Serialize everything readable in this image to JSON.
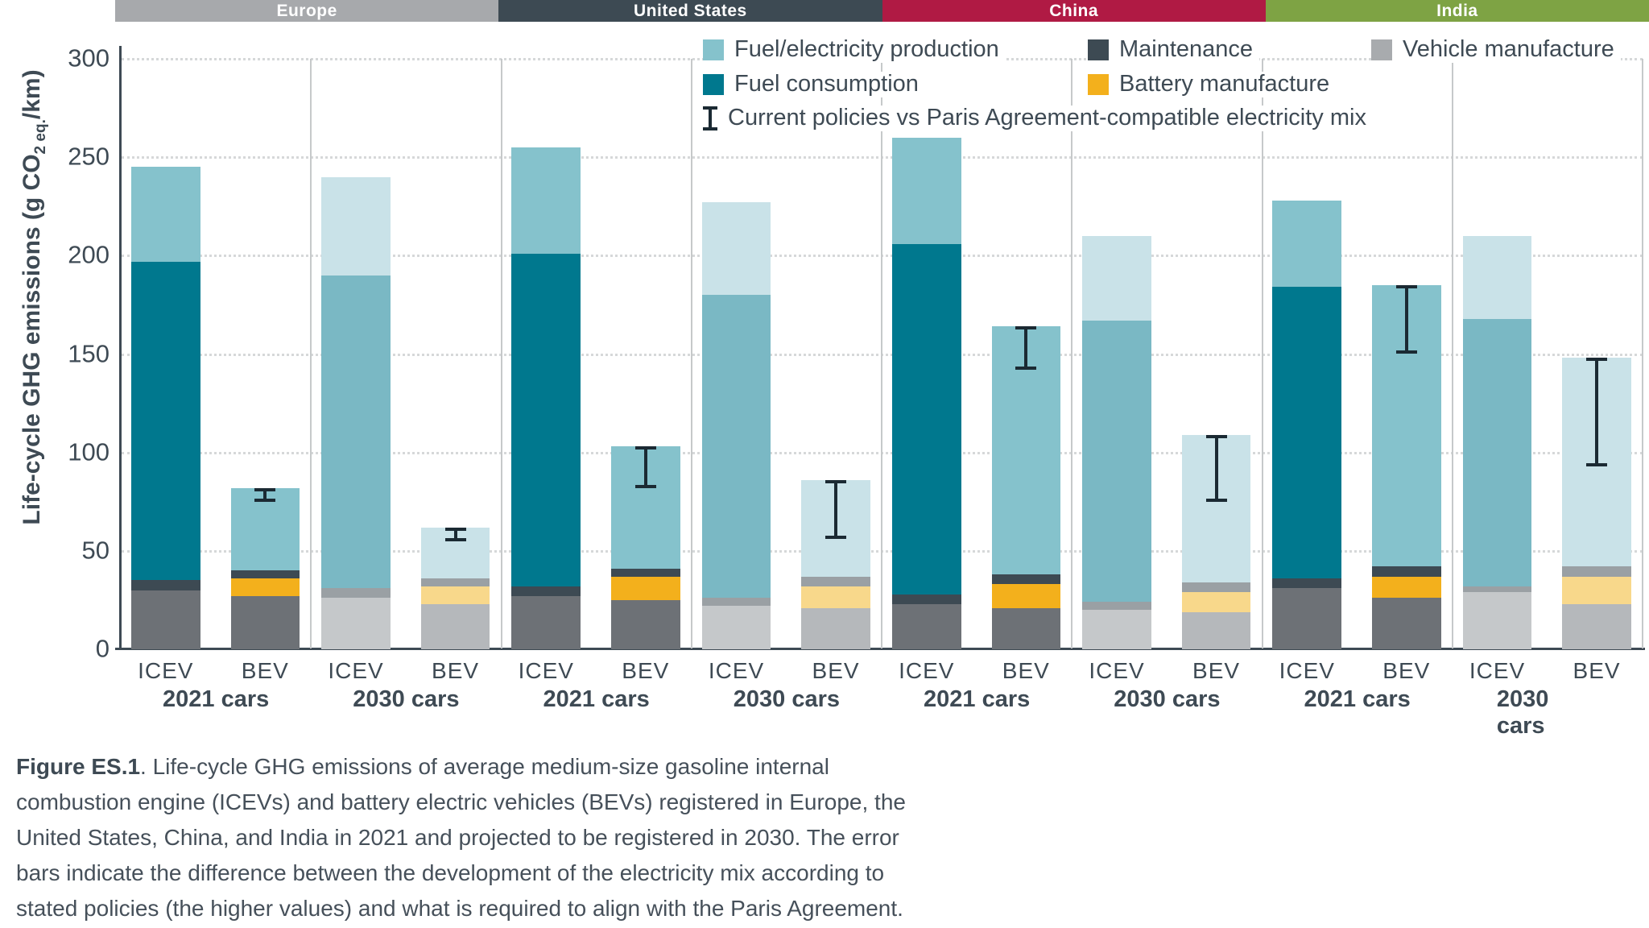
{
  "header": {
    "regions": [
      {
        "label": "Europe",
        "color": "#a7a9ac"
      },
      {
        "label": "United States",
        "color": "#3d4a53"
      },
      {
        "label": "China",
        "color": "#b01a44"
      },
      {
        "label": "India",
        "color": "#7ea344"
      }
    ]
  },
  "y_axis": {
    "title_prefix": "Life-cycle GHG emissions (g CO",
    "title_sub": "2 eq.",
    "title_suffix": "/km)",
    "ticks": [
      300,
      250,
      200,
      150,
      100,
      50,
      0
    ]
  },
  "legend": {
    "rows": [
      [
        {
          "kind": "swatch",
          "label": "Fuel/electricity production",
          "color": "#85c2cc"
        },
        {
          "kind": "swatch",
          "label": "Maintenance",
          "color": "#3d4a53"
        },
        {
          "kind": "swatch",
          "label": "Vehicle manufacture",
          "color": "#a8abae"
        }
      ],
      [
        {
          "kind": "swatch",
          "label": "Fuel consumption",
          "color": "#00788e"
        },
        {
          "kind": "swatch",
          "label": "Battery manufacture",
          "color": "#f3b01c"
        }
      ],
      [
        {
          "kind": "error-glyph",
          "label": "Current policies vs Paris Agreement-compatible electricity mix"
        }
      ]
    ]
  },
  "chart_data": {
    "type": "bar",
    "stacked": true,
    "ylim": [
      0,
      300
    ],
    "ylabel": "Life-cycle GHG emissions (g CO2 eq./km)",
    "grid": "dotted-horizontal",
    "error_bar_note": "Current policies vs Paris Agreement-compatible electricity mix",
    "palettes": {
      "y2021": {
        "vehicle_manufacture": "#6d7176",
        "battery_manufacture": "#f3b01c",
        "maintenance": "#3d4a53",
        "fuel_consumption": "#00788e",
        "fuel_electricity_production": "#85c2cc"
      },
      "y2030_icev": {
        "vehicle_manufacture": "#c5c8ca",
        "maintenance": "#9aa0a4",
        "fuel_consumption": "#7ab8c4",
        "fuel_electricity_production": "#c9e2e8"
      },
      "y2030_bev": {
        "vehicle_manufacture": "#b5b8bb",
        "battery_manufacture": "#f8d88b",
        "maintenance": "#9aa0a4",
        "fuel_electricity_production": "#c9e2e8"
      }
    },
    "groups": [
      {
        "region": "Europe",
        "label": "2021 cars",
        "bars": [
          {
            "label": "ICEV",
            "palette": "y2021",
            "total": 245,
            "segments": [
              [
                "vehicle_manufacture",
                30
              ],
              [
                "maintenance",
                5
              ],
              [
                "fuel_consumption",
                162
              ],
              [
                "fuel_electricity_production",
                48
              ]
            ]
          },
          {
            "label": "BEV",
            "palette": "y2021",
            "total": 82,
            "error": {
              "low": 75,
              "high": 82
            },
            "segments": [
              [
                "vehicle_manufacture",
                27
              ],
              [
                "battery_manufacture",
                9
              ],
              [
                "maintenance",
                4
              ],
              [
                "fuel_electricity_production",
                42
              ]
            ]
          }
        ]
      },
      {
        "region": "Europe",
        "label": "2030 cars",
        "bars": [
          {
            "label": "ICEV",
            "palette": "y2030_icev",
            "total": 240,
            "segments": [
              [
                "vehicle_manufacture",
                26
              ],
              [
                "maintenance",
                5
              ],
              [
                "fuel_consumption",
                159
              ],
              [
                "fuel_electricity_production",
                50
              ]
            ]
          },
          {
            "label": "BEV",
            "palette": "y2030_bev",
            "total": 62,
            "error": {
              "low": 55,
              "high": 62
            },
            "segments": [
              [
                "vehicle_manufacture",
                23
              ],
              [
                "battery_manufacture",
                9
              ],
              [
                "maintenance",
                4
              ],
              [
                "fuel_electricity_production",
                26
              ]
            ]
          }
        ]
      },
      {
        "region": "United States",
        "label": "2021 cars",
        "bars": [
          {
            "label": "ICEV",
            "palette": "y2021",
            "total": 255,
            "segments": [
              [
                "vehicle_manufacture",
                27
              ],
              [
                "maintenance",
                5
              ],
              [
                "fuel_consumption",
                169
              ],
              [
                "fuel_electricity_production",
                54
              ]
            ]
          },
          {
            "label": "BEV",
            "palette": "y2021",
            "total": 103,
            "error": {
              "low": 82,
              "high": 103
            },
            "segments": [
              [
                "vehicle_manufacture",
                25
              ],
              [
                "battery_manufacture",
                12
              ],
              [
                "maintenance",
                4
              ],
              [
                "fuel_electricity_production",
                62
              ]
            ]
          }
        ]
      },
      {
        "region": "United States",
        "label": "2030 cars",
        "bars": [
          {
            "label": "ICEV",
            "palette": "y2030_icev",
            "total": 227,
            "segments": [
              [
                "vehicle_manufacture",
                22
              ],
              [
                "maintenance",
                4
              ],
              [
                "fuel_consumption",
                154
              ],
              [
                "fuel_electricity_production",
                47
              ]
            ]
          },
          {
            "label": "BEV",
            "palette": "y2030_bev",
            "total": 86,
            "error": {
              "low": 56,
              "high": 86
            },
            "segments": [
              [
                "vehicle_manufacture",
                21
              ],
              [
                "battery_manufacture",
                11
              ],
              [
                "maintenance",
                5
              ],
              [
                "fuel_electricity_production",
                49
              ]
            ]
          }
        ]
      },
      {
        "region": "China",
        "label": "2021 cars",
        "bars": [
          {
            "label": "ICEV",
            "palette": "y2021",
            "total": 260,
            "segments": [
              [
                "vehicle_manufacture",
                23
              ],
              [
                "maintenance",
                5
              ],
              [
                "fuel_consumption",
                178
              ],
              [
                "fuel_electricity_production",
                54
              ]
            ]
          },
          {
            "label": "BEV",
            "palette": "y2021",
            "total": 164,
            "error": {
              "low": 142,
              "high": 164
            },
            "segments": [
              [
                "vehicle_manufacture",
                21
              ],
              [
                "battery_manufacture",
                12
              ],
              [
                "maintenance",
                5
              ],
              [
                "fuel_electricity_production",
                126
              ]
            ]
          }
        ]
      },
      {
        "region": "China",
        "label": "2030 cars",
        "bars": [
          {
            "label": "ICEV",
            "palette": "y2030_icev",
            "total": 210,
            "segments": [
              [
                "vehicle_manufacture",
                20
              ],
              [
                "maintenance",
                4
              ],
              [
                "fuel_consumption",
                143
              ],
              [
                "fuel_electricity_production",
                43
              ]
            ]
          },
          {
            "label": "BEV",
            "palette": "y2030_bev",
            "total": 109,
            "error": {
              "low": 75,
              "high": 109
            },
            "segments": [
              [
                "vehicle_manufacture",
                19
              ],
              [
                "battery_manufacture",
                10
              ],
              [
                "maintenance",
                5
              ],
              [
                "fuel_electricity_production",
                75
              ]
            ]
          }
        ]
      },
      {
        "region": "India",
        "label": "2021 cars",
        "bars": [
          {
            "label": "ICEV",
            "palette": "y2021",
            "total": 228,
            "segments": [
              [
                "vehicle_manufacture",
                31
              ],
              [
                "maintenance",
                5
              ],
              [
                "fuel_consumption",
                148
              ],
              [
                "fuel_electricity_production",
                44
              ]
            ]
          },
          {
            "label": "BEV",
            "palette": "y2021",
            "total": 185,
            "error": {
              "low": 150,
              "high": 185
            },
            "segments": [
              [
                "vehicle_manufacture",
                26
              ],
              [
                "battery_manufacture",
                11
              ],
              [
                "maintenance",
                5
              ],
              [
                "fuel_electricity_production",
                143
              ]
            ]
          }
        ]
      },
      {
        "region": "India",
        "label": "2030 cars",
        "bars": [
          {
            "label": "ICEV",
            "palette": "y2030_icev",
            "total": 210,
            "segments": [
              [
                "vehicle_manufacture",
                29
              ],
              [
                "maintenance",
                3
              ],
              [
                "fuel_consumption",
                136
              ],
              [
                "fuel_electricity_production",
                42
              ]
            ]
          },
          {
            "label": "BEV",
            "palette": "y2030_bev",
            "total": 148,
            "error": {
              "low": 93,
              "high": 148
            },
            "segments": [
              [
                "vehicle_manufacture",
                23
              ],
              [
                "battery_manufacture",
                14
              ],
              [
                "maintenance",
                5
              ],
              [
                "fuel_electricity_production",
                106
              ]
            ]
          }
        ]
      }
    ]
  },
  "caption": {
    "bold": "Figure ES.1",
    "text": ". Life-cycle GHG emissions of average medium-size gasoline internal combustion engine (ICEVs) and battery electric vehicles (BEVs) registered in Europe, the United States, China, and India in 2021 and projected to be registered in 2030. The error bars indicate the difference between the development of the electricity mix according to stated policies (the higher values) and what is required to align with the Paris Agreement."
  }
}
